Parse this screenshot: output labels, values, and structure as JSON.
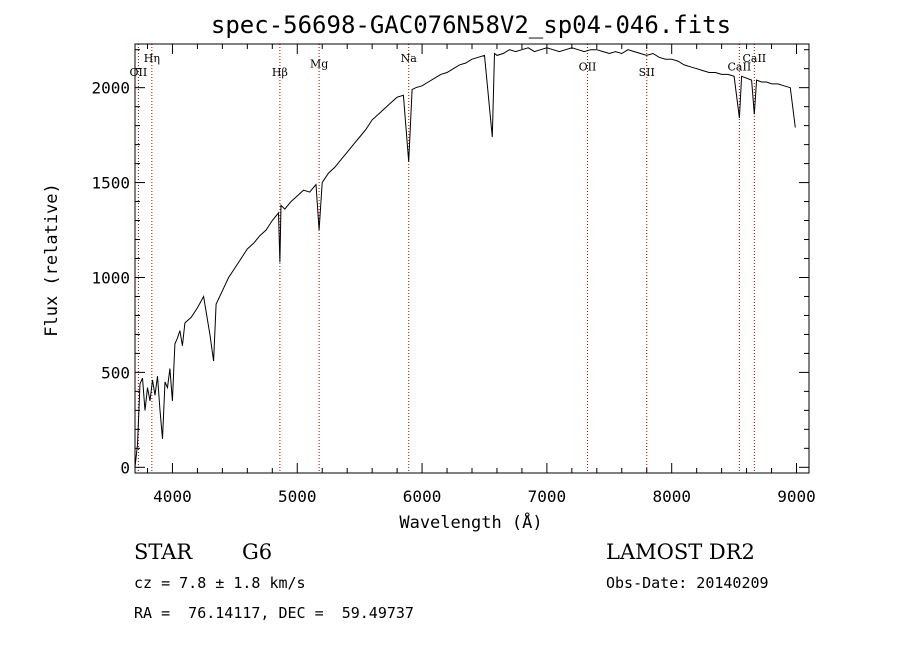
{
  "chart_data": {
    "type": "line",
    "title": "spec-56698-GAC076N58V2_sp04-046.fits",
    "xlabel": "Wavelength (Å)",
    "ylabel": "Flux (relative)",
    "xlim": [
      3700,
      9100
    ],
    "ylim": [
      -30,
      2230
    ],
    "xticks": [
      4000,
      5000,
      6000,
      7000,
      8000,
      9000
    ],
    "yticks": [
      0,
      500,
      1000,
      1500,
      2000
    ],
    "grid": false,
    "series": [
      {
        "x": [
          3700,
          3720,
          3740,
          3760,
          3780,
          3800,
          3820,
          3840,
          3860,
          3880,
          3900,
          3920,
          3940,
          3960,
          3980,
          4000,
          4020,
          4040,
          4060,
          4080,
          4100,
          4150,
          4200,
          4250,
          4300,
          4330,
          4350,
          4400,
          4450,
          4500,
          4550,
          4600,
          4650,
          4700,
          4750,
          4800,
          4850,
          4861,
          4870,
          4900,
          4950,
          5000,
          5050,
          5100,
          5150,
          5175,
          5200,
          5250,
          5300,
          5350,
          5400,
          5450,
          5500,
          5550,
          5600,
          5650,
          5700,
          5750,
          5800,
          5850,
          5893,
          5920,
          5950,
          6000,
          6050,
          6100,
          6150,
          6200,
          6250,
          6300,
          6350,
          6400,
          6450,
          6500,
          6563,
          6580,
          6600,
          6650,
          6700,
          6750,
          6800,
          6850,
          6900,
          6950,
          7000,
          7050,
          7100,
          7150,
          7200,
          7250,
          7300,
          7350,
          7400,
          7450,
          7500,
          7550,
          7600,
          7650,
          7700,
          7750,
          7800,
          7850,
          7900,
          7950,
          8000,
          8050,
          8100,
          8150,
          8200,
          8250,
          8300,
          8350,
          8400,
          8450,
          8500,
          8542,
          8560,
          8600,
          8640,
          8662,
          8680,
          8720,
          8760,
          8800,
          8850,
          8900,
          8950,
          8990
        ],
        "y": [
          0,
          120,
          440,
          470,
          300,
          420,
          350,
          460,
          380,
          480,
          300,
          150,
          450,
          420,
          520,
          350,
          650,
          680,
          720,
          640,
          760,
          790,
          840,
          900,
          700,
          560,
          860,
          930,
          1000,
          1050,
          1100,
          1150,
          1180,
          1220,
          1250,
          1300,
          1340,
          1080,
          1380,
          1360,
          1400,
          1430,
          1460,
          1450,
          1490,
          1250,
          1500,
          1550,
          1580,
          1620,
          1660,
          1700,
          1740,
          1780,
          1830,
          1860,
          1890,
          1920,
          1950,
          1960,
          1610,
          1990,
          2000,
          2010,
          2030,
          2050,
          2070,
          2080,
          2100,
          2120,
          2130,
          2150,
          2160,
          2170,
          1740,
          2180,
          2170,
          2180,
          2200,
          2190,
          2200,
          2210,
          2190,
          2200,
          2210,
          2200,
          2190,
          2200,
          2210,
          2200,
          2190,
          2200,
          2200,
          2190,
          2180,
          2190,
          2180,
          2200,
          2190,
          2180,
          2170,
          2180,
          2160,
          2150,
          2150,
          2140,
          2120,
          2110,
          2100,
          2090,
          2080,
          2080,
          2070,
          2070,
          2060,
          1840,
          2060,
          2050,
          2040,
          1860,
          2040,
          2030,
          2030,
          2020,
          2020,
          2010,
          2000,
          1790
        ]
      }
    ],
    "lines": [
      {
        "label": "Hη",
        "x": 3835,
        "row": 1
      },
      {
        "label": "OII",
        "x": 3727,
        "row": 2
      },
      {
        "label": "Hβ",
        "x": 4861,
        "row": 2
      },
      {
        "label": "Mg",
        "x": 5175,
        "row": 1.4
      },
      {
        "label": "Na",
        "x": 5893,
        "row": 1
      },
      {
        "label": "OII",
        "x": 7325,
        "row": 1.6
      },
      {
        "label": "SII",
        "x": 7800,
        "row": 2
      },
      {
        "label": "CaII",
        "x": 8542,
        "row": 1.6
      },
      {
        "label": "CaII",
        "x": 8662,
        "row": 1
      }
    ]
  },
  "info": {
    "class_label": "STAR",
    "subclass": "G6",
    "survey": "LAMOST DR2",
    "cz": "cz = 7.8 ± 1.8 km/s",
    "obs_date": "Obs-Date: 20140209",
    "radec": "RA =  76.14117, DEC =  59.49737"
  }
}
